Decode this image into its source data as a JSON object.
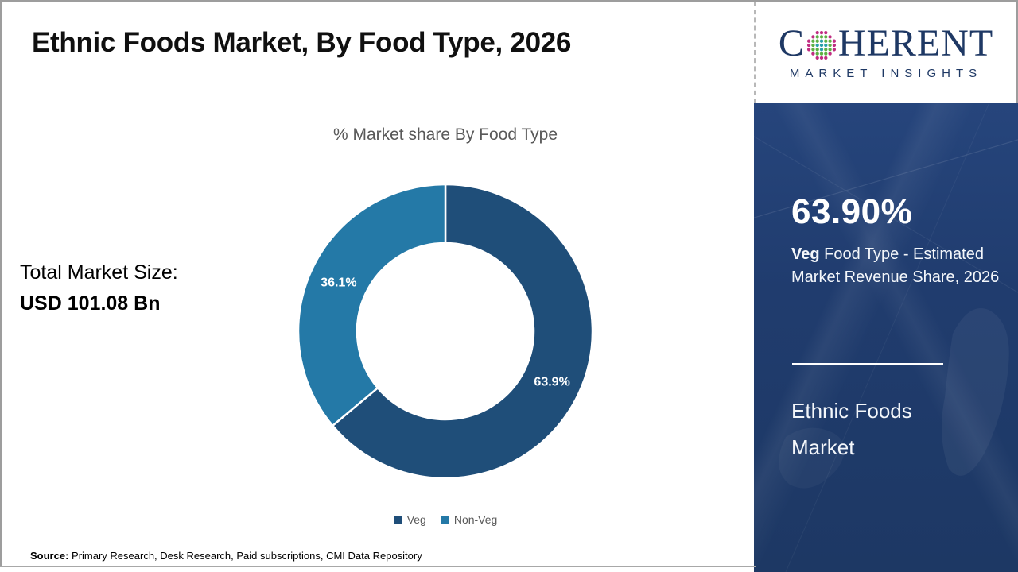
{
  "page": {
    "title": "Ethnic Foods Market, By Food Type, 2026"
  },
  "logo": {
    "name_pre": "C",
    "name_post": "HERENT",
    "tagline": "MARKET INSIGHTS",
    "color": "#1e3864",
    "globe_colors": {
      "inner": "#2aa0a8",
      "mid": "#5cb043",
      "outer": "#c02c82"
    }
  },
  "left_panel": {
    "total_label": "Total Market Size:",
    "total_value": "USD 101.08 Bn"
  },
  "chart_data": {
    "type": "pie",
    "subtype": "donut",
    "title": "% Market share By Food Type",
    "categories": [
      "Veg",
      "Non-Veg"
    ],
    "values": [
      63.9,
      36.1
    ],
    "slice_labels": [
      "63.9%",
      "36.1%"
    ],
    "colors": [
      "#1f4e79",
      "#2479a7"
    ],
    "start_angle_deg": 0,
    "direction": "clockwise",
    "legend_position": "bottom",
    "legend_labels": [
      "Veg",
      "Non-Veg"
    ]
  },
  "sidebar": {
    "highlight_value": "63.90%",
    "highlight_desc_bold": "Veg",
    "highlight_desc": " Food Type - Estimated Market Revenue Share, 2026",
    "report_name": "Ethnic Foods Market",
    "bg_color": "#1f3b6b"
  },
  "footer": {
    "source_label": "Source:",
    "source_text": " Primary Research, Desk Research, Paid subscriptions, CMI Data Repository"
  }
}
